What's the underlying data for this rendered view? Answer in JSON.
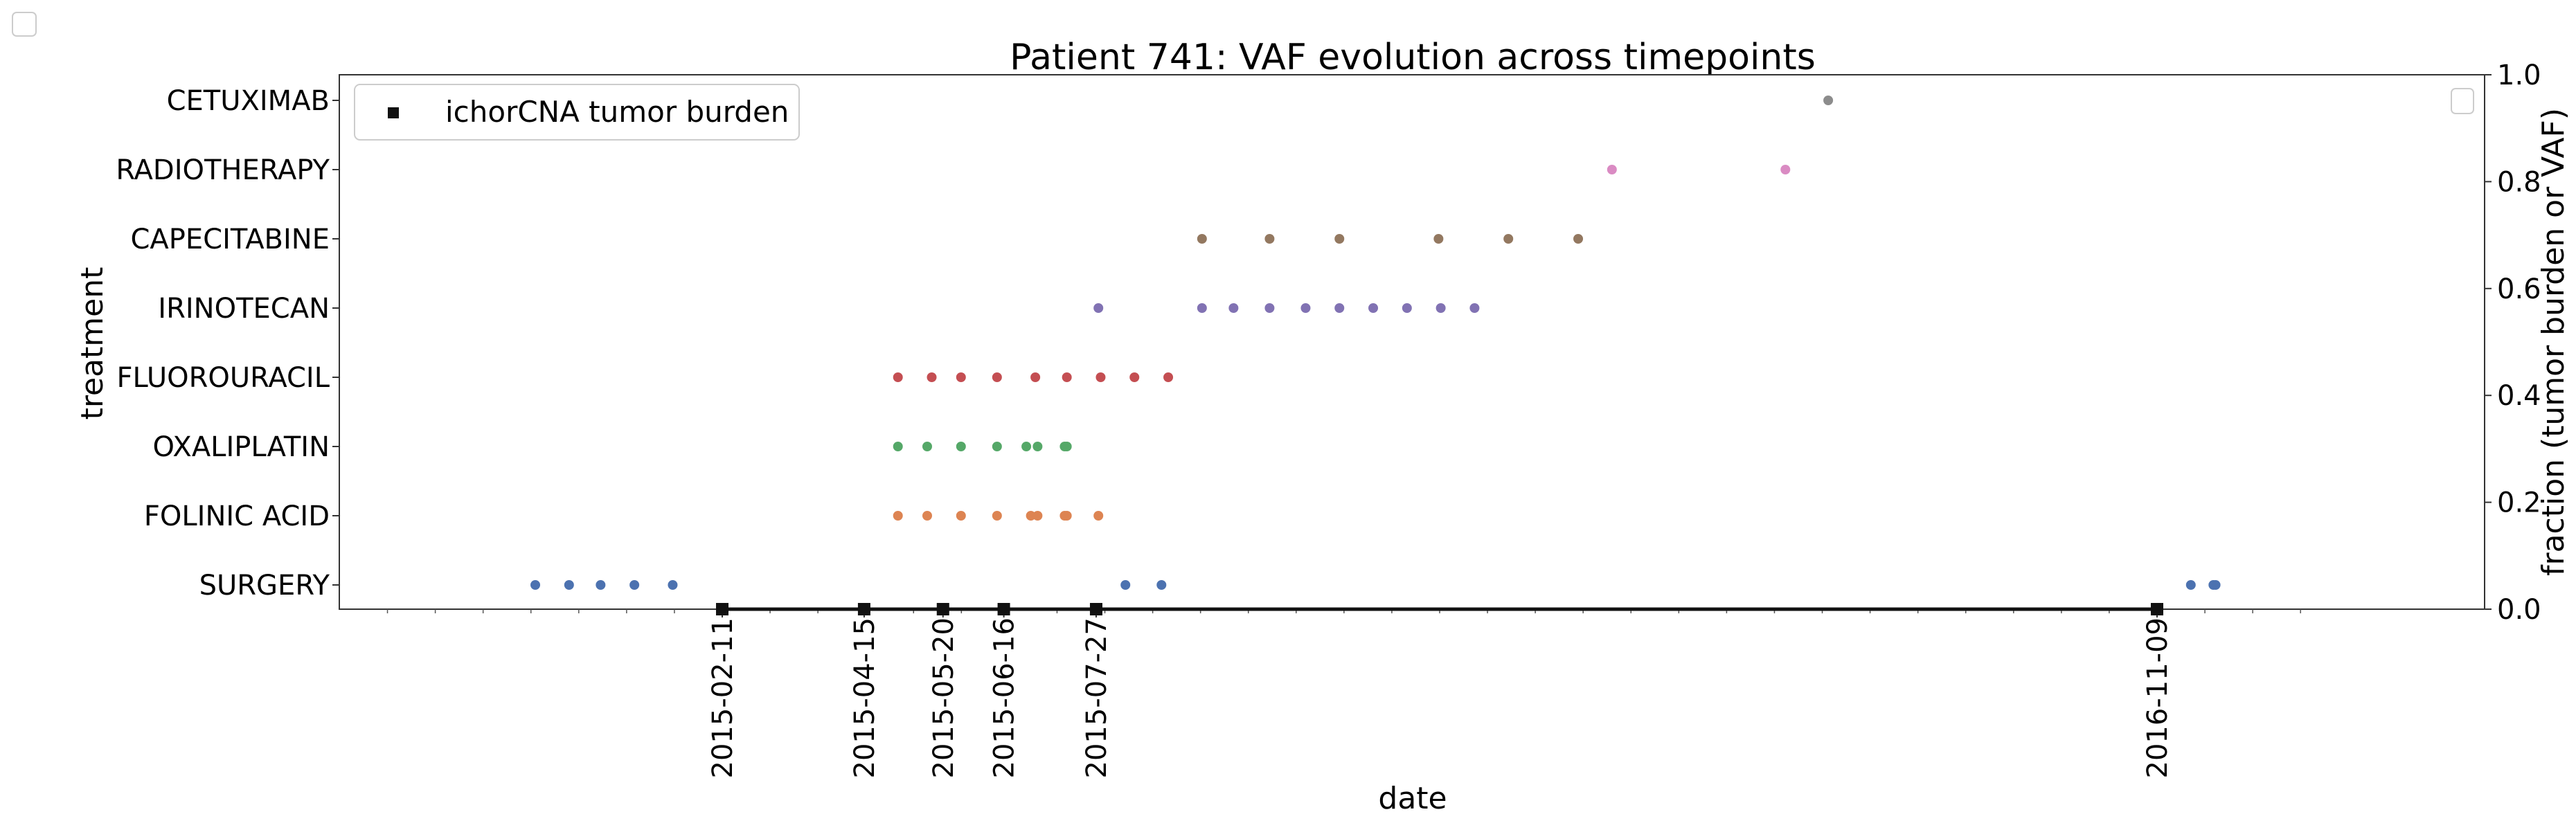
{
  "chart_data": {
    "type": "scatter",
    "title": "Patient 741: VAF evolution across timepoints",
    "xlabel": "date",
    "ylabel": "treatment",
    "ylabel_right": "fraction (tumor burden or VAF)",
    "x_tick_labels": [
      "2015-02-11",
      "2015-04-15",
      "2015-05-20",
      "2015-06-16",
      "2015-07-27",
      "2016-11-09"
    ],
    "y_categories": [
      "SURGERY",
      "FOLINIC ACID",
      "OXALIPLATIN",
      "FLUOROURACIL",
      "IRINOTECAN",
      "CAPECITABINE",
      "RADIOTHERAPY",
      "CETUXIMAB"
    ],
    "right_axis": {
      "ticks": [
        "0.0",
        "0.2",
        "0.4",
        "0.6",
        "0.8",
        "1.0"
      ],
      "ylim": [
        0,
        1
      ]
    },
    "legend": {
      "label": "ichorCNA tumor burden",
      "position": "top-left"
    },
    "colors": {
      "SURGERY": "#4c72b0",
      "FOLINIC ACID": "#dd8452",
      "OXALIPLATIN": "#55a868",
      "FLUOROURACIL": "#c44e52",
      "IRINOTECAN": "#8172b3",
      "CAPECITABINE": "#937860",
      "RADIOTHERAPY": "#da8bc3",
      "CETUXIMAB": "#8c8c8c",
      "tumor_burden": "#111111"
    },
    "treatments": [
      {
        "name": "SURGERY",
        "dates": [
          "2014-11-20",
          "2014-12-05",
          "2014-12-19",
          "2015-01-03",
          "2015-01-20",
          "2015-08-09",
          "2015-08-25",
          "2016-11-24",
          "2016-12-04",
          "2016-12-05"
        ]
      },
      {
        "name": "FOLINIC ACID",
        "dates": [
          "2015-04-30",
          "2015-05-13",
          "2015-05-28",
          "2015-06-13",
          "2015-06-28",
          "2015-07-13",
          "2015-07-01",
          "2015-07-14",
          "2015-07-28"
        ]
      },
      {
        "name": "OXALIPLATIN",
        "dates": [
          "2015-04-30",
          "2015-05-13",
          "2015-05-28",
          "2015-06-13",
          "2015-06-26",
          "2015-07-13",
          "2015-07-01",
          "2015-07-14"
        ]
      },
      {
        "name": "FLUOROURACIL",
        "dates": [
          "2015-04-30",
          "2015-05-15",
          "2015-05-28",
          "2015-06-13",
          "2015-06-30",
          "2015-07-14",
          "2015-07-29",
          "2015-08-13",
          "2015-08-28"
        ]
      },
      {
        "name": "IRINOTECAN",
        "dates": [
          "2015-07-28",
          "2015-09-12",
          "2015-09-26",
          "2015-10-12",
          "2015-10-28",
          "2015-11-12",
          "2015-11-27",
          "2015-12-12",
          "2015-12-27",
          "2016-01-11"
        ]
      },
      {
        "name": "CAPECITABINE",
        "dates": [
          "2015-09-12",
          "2015-10-12",
          "2015-11-12",
          "2015-12-26",
          "2016-01-26",
          "2016-02-26"
        ]
      },
      {
        "name": "RADIOTHERAPY",
        "dates": [
          "2016-03-12",
          "2016-05-28"
        ]
      },
      {
        "name": "CETUXIMAB",
        "dates": [
          "2016-06-16"
        ]
      }
    ],
    "tumor_burden": [
      {
        "date": "2015-02-11",
        "value": 0.0
      },
      {
        "date": "2015-04-15",
        "value": 0.0
      },
      {
        "date": "2015-05-20",
        "value": 0.0
      },
      {
        "date": "2015-06-16",
        "value": 0.0
      },
      {
        "date": "2015-07-27",
        "value": 0.0
      },
      {
        "date": "2016-11-09",
        "value": 0.0
      }
    ]
  }
}
